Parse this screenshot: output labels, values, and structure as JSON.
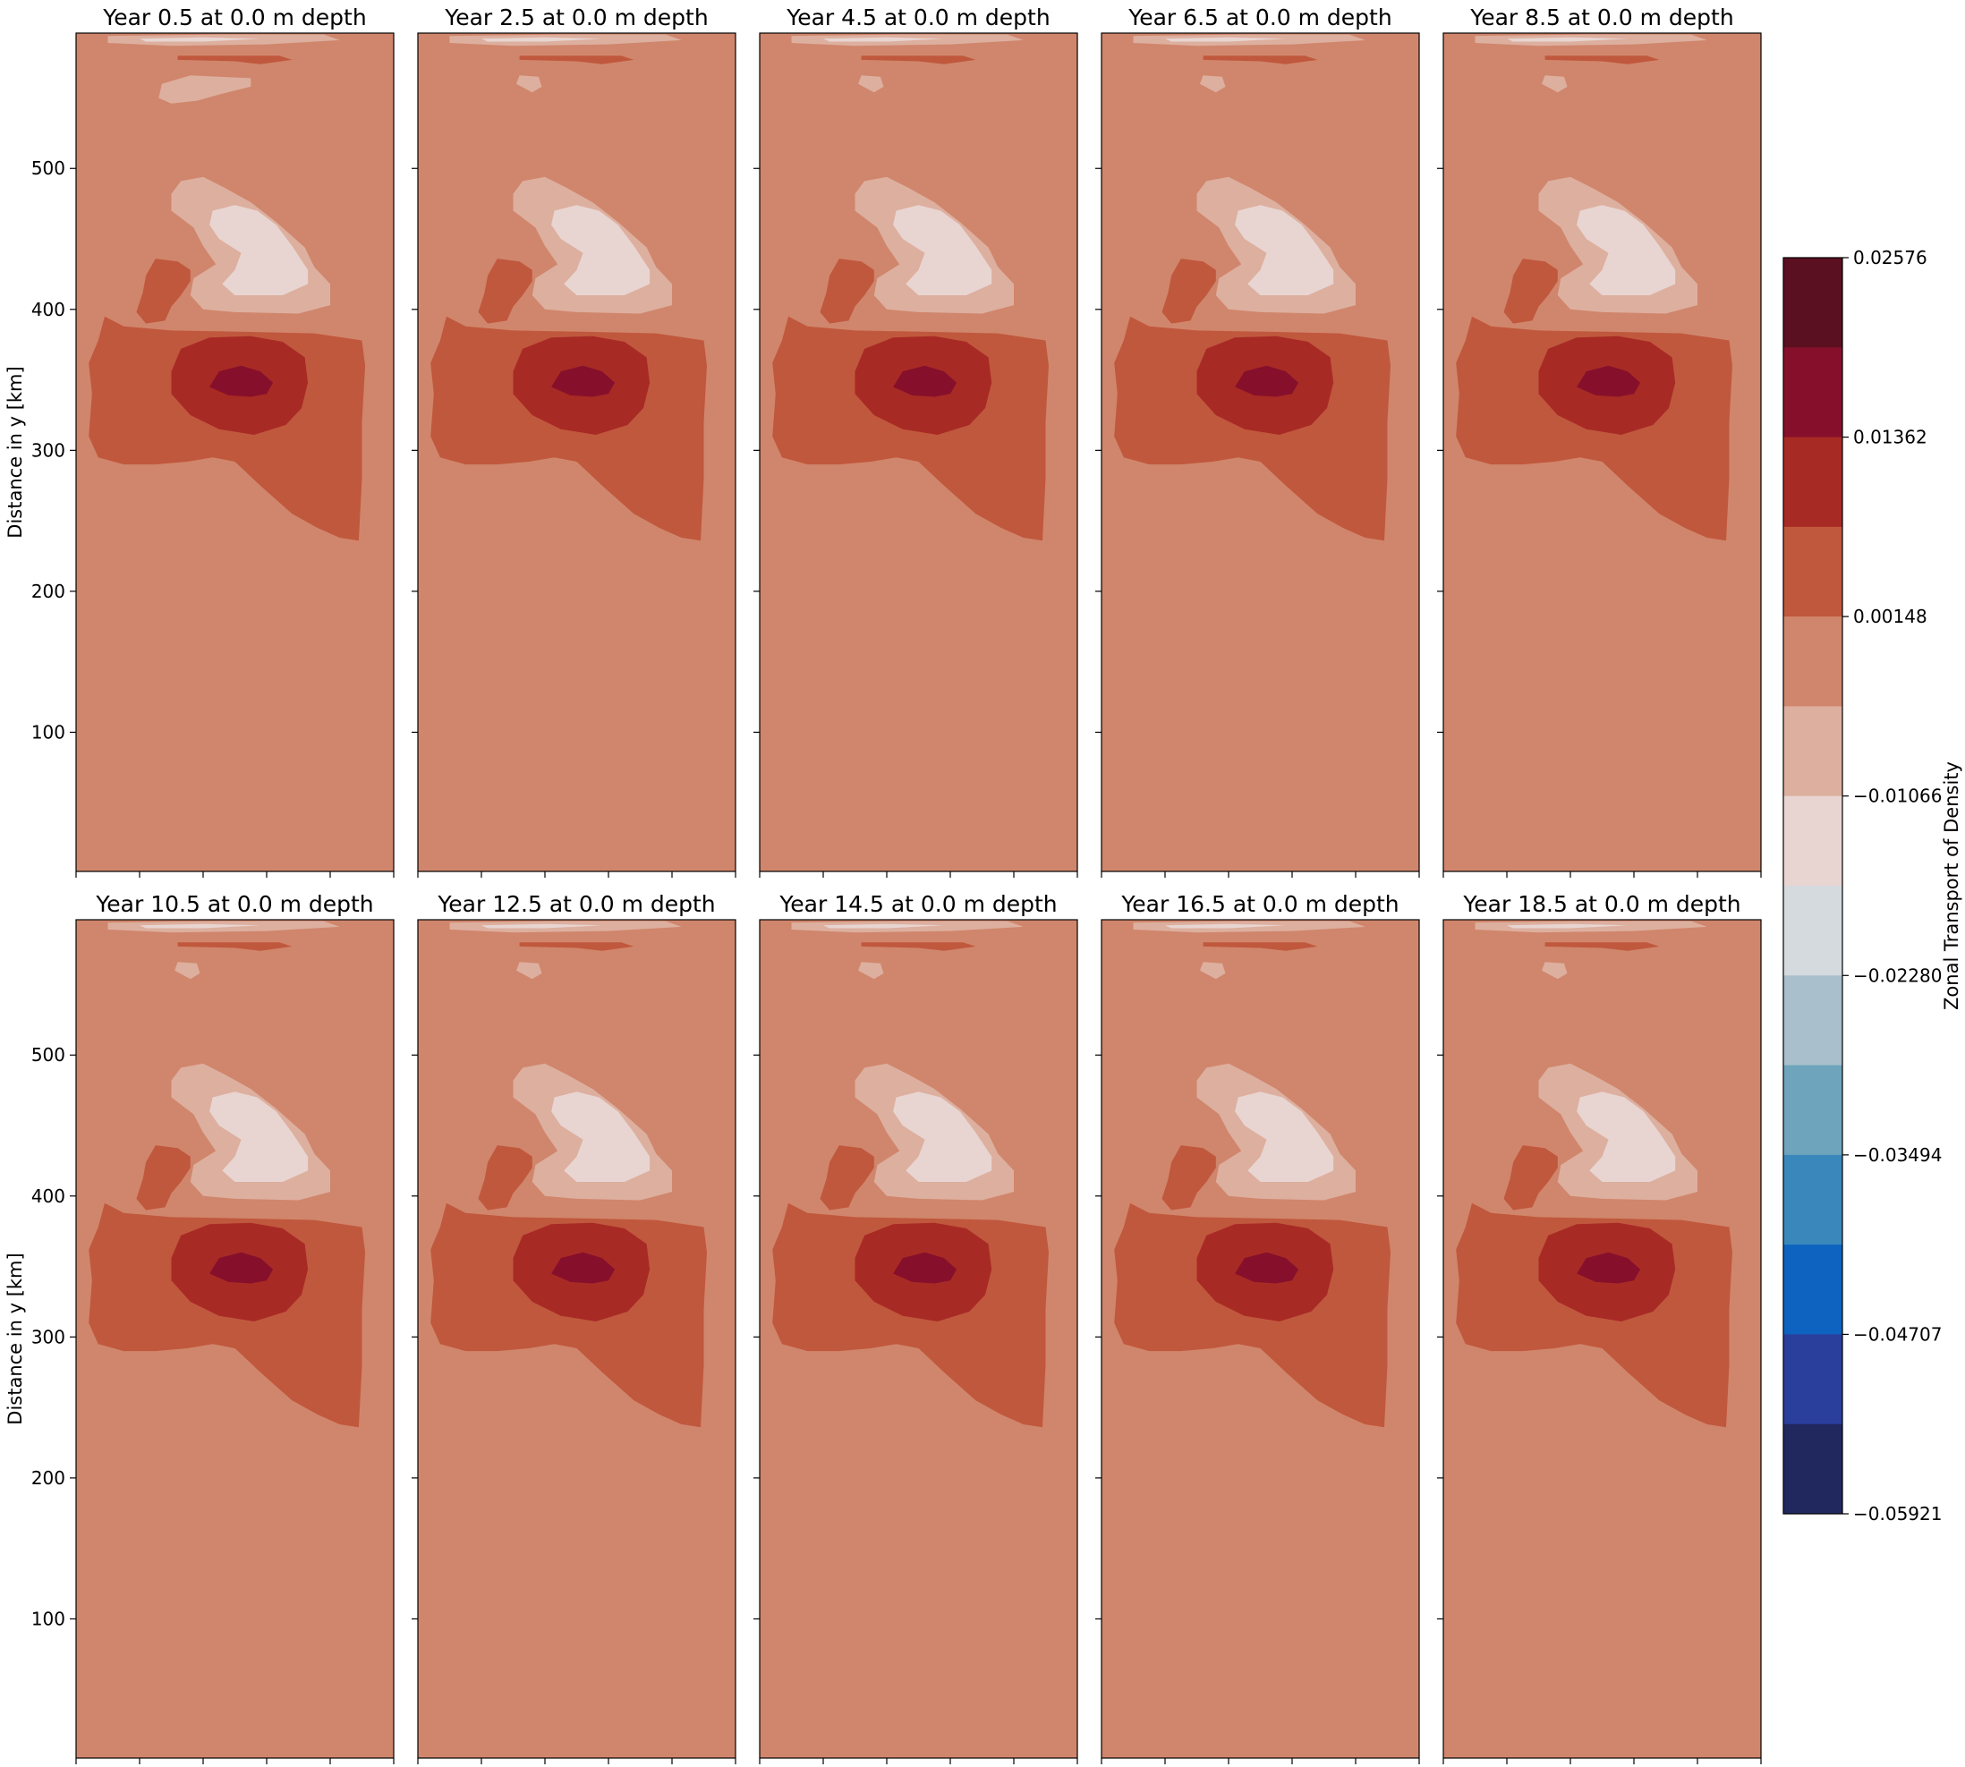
{
  "chart_data": {
    "type": "heatmap",
    "colors": {
      "background": "#d0866c",
      "band_l1": "#ddaf9f",
      "band_l2": "#e8d5d1",
      "band_d1": "#c0583d",
      "band_d2": "#a82a25",
      "band_d3": "#86102b"
    },
    "panels": [
      {
        "title": "Year 0.5 at 0.0 m depth",
        "ylabel": "Distance in y [km]",
        "show_yticks": true
      },
      {
        "title": "Year 2.5 at 0.0 m depth",
        "ylabel": "",
        "show_yticks": false
      },
      {
        "title": "Year 4.5 at 0.0 m depth",
        "ylabel": "",
        "show_yticks": false
      },
      {
        "title": "Year 6.5 at 0.0 m depth",
        "ylabel": "",
        "show_yticks": false
      },
      {
        "title": "Year 8.5 at 0.0 m depth",
        "ylabel": "",
        "show_yticks": false
      },
      {
        "title": "Year 10.5 at 0.0 m depth",
        "ylabel": "Distance in y [km]",
        "show_yticks": true
      },
      {
        "title": "Year 12.5 at 0.0 m depth",
        "ylabel": "",
        "show_yticks": false
      },
      {
        "title": "Year 14.5 at 0.0 m depth",
        "ylabel": "",
        "show_yticks": false
      },
      {
        "title": "Year 16.5 at 0.0 m depth",
        "ylabel": "",
        "show_yticks": false
      },
      {
        "title": "Year 18.5 at 0.0 m depth",
        "ylabel": "",
        "show_yticks": false
      }
    ],
    "y_axis": {
      "ticks": [
        100,
        200,
        300,
        400,
        500
      ],
      "ylim": [
        0,
        595
      ]
    },
    "x_axis": {
      "tick_count": 6,
      "tick_labels": []
    },
    "colorbar": {
      "label": "Zonal Transport of Density",
      "range": [
        -0.05921,
        0.02576
      ],
      "tick_labels": [
        "0.02576",
        "0.01362",
        "0.00148",
        "−0.01066",
        "−0.02280",
        "−0.03494",
        "−0.04707",
        "−0.05921"
      ],
      "band_colors_top_to_bottom": [
        "#5a1020",
        "#86102b",
        "#a82a25",
        "#c0583d",
        "#d0866c",
        "#ddaf9f",
        "#e8d5d1",
        "#d5dade",
        "#a9bfcb",
        "#6ea5bc",
        "#3a88bb",
        "#0d63bf",
        "#2a3e9c",
        "#21285e"
      ]
    }
  }
}
